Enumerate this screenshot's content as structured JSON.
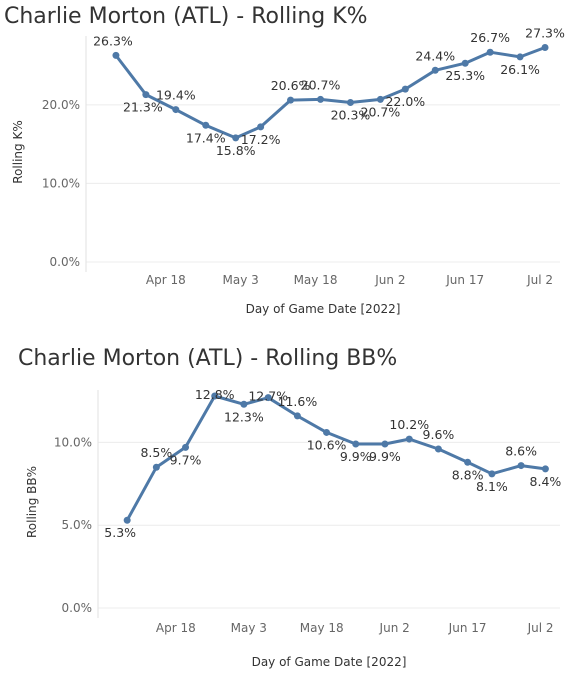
{
  "accent_color": "#4e79a7",
  "chart_data": [
    {
      "type": "line",
      "title": "Charlie Morton (ATL) - Rolling K%",
      "xlabel": "Day of Game Date [2022]",
      "ylabel": "Rolling K%",
      "x_ticks": [
        {
          "date": "2022-04-18",
          "label": "Apr 18"
        },
        {
          "date": "2022-05-03",
          "label": "May 3"
        },
        {
          "date": "2022-05-18",
          "label": "May 18"
        },
        {
          "date": "2022-06-02",
          "label": "Jun 2"
        },
        {
          "date": "2022-06-17",
          "label": "Jun 17"
        },
        {
          "date": "2022-07-02",
          "label": "Jul 2"
        }
      ],
      "y_ticks": [
        {
          "value": 0,
          "label": "0.0%"
        },
        {
          "value": 10,
          "label": "10.0%"
        },
        {
          "value": 20,
          "label": "20.0%"
        }
      ],
      "ylim": [
        0,
        28
      ],
      "xlim": [
        "2022-04-02",
        "2022-07-06"
      ],
      "grid": true,
      "series": [
        {
          "points": [
            {
              "x": "2022-04-08",
              "y": 26.3,
              "label": "26.3%"
            },
            {
              "x": "2022-04-14",
              "y": 21.3,
              "label": "21.3%"
            },
            {
              "x": "2022-04-20",
              "y": 19.4,
              "label": "19.4%"
            },
            {
              "x": "2022-04-26",
              "y": 17.4,
              "label": "17.4%"
            },
            {
              "x": "2022-05-02",
              "y": 15.8,
              "label": "15.8%"
            },
            {
              "x": "2022-05-07",
              "y": 17.2,
              "label": "17.2%"
            },
            {
              "x": "2022-05-13",
              "y": 20.6,
              "label": "20.6%"
            },
            {
              "x": "2022-05-19",
              "y": 20.7,
              "label": "20.7%"
            },
            {
              "x": "2022-05-25",
              "y": 20.3,
              "label": "20.3%"
            },
            {
              "x": "2022-05-31",
              "y": 20.7,
              "label": "20.7%"
            },
            {
              "x": "2022-06-05",
              "y": 22.0,
              "label": "22.0%"
            },
            {
              "x": "2022-06-11",
              "y": 24.4,
              "label": "24.4%"
            },
            {
              "x": "2022-06-17",
              "y": 25.3,
              "label": "25.3%"
            },
            {
              "x": "2022-06-22",
              "y": 26.7,
              "label": "26.7%"
            },
            {
              "x": "2022-06-28",
              "y": 26.1,
              "label": "26.1%"
            },
            {
              "x": "2022-07-03",
              "y": 27.3,
              "label": "27.3%"
            }
          ]
        }
      ]
    },
    {
      "type": "line",
      "title": "Charlie Morton (ATL) - Rolling BB%",
      "xlabel": "Day of Game Date [2022]",
      "ylabel": "Rolling BB%",
      "x_ticks": [
        {
          "date": "2022-04-18",
          "label": "Apr 18"
        },
        {
          "date": "2022-05-03",
          "label": "May 3"
        },
        {
          "date": "2022-05-18",
          "label": "May 18"
        },
        {
          "date": "2022-06-02",
          "label": "Jun 2"
        },
        {
          "date": "2022-06-17",
          "label": "Jun 17"
        },
        {
          "date": "2022-07-02",
          "label": "Jul 2"
        }
      ],
      "y_ticks": [
        {
          "value": 0,
          "label": "0.0%"
        },
        {
          "value": 5,
          "label": "5.0%"
        },
        {
          "value": 10,
          "label": "10.0%"
        }
      ],
      "ylim": [
        0,
        12.8
      ],
      "xlim": [
        "2022-04-02",
        "2022-07-06"
      ],
      "grid": true,
      "series": [
        {
          "points": [
            {
              "x": "2022-04-08",
              "y": 5.3,
              "label": "5.3%"
            },
            {
              "x": "2022-04-14",
              "y": 8.5,
              "label": "8.5%"
            },
            {
              "x": "2022-04-20",
              "y": 9.7,
              "label": "9.7%"
            },
            {
              "x": "2022-04-26",
              "y": 12.8,
              "label": "12.8%"
            },
            {
              "x": "2022-05-02",
              "y": 12.3,
              "label": "12.3%"
            },
            {
              "x": "2022-05-07",
              "y": 12.7,
              "label": "12.7%"
            },
            {
              "x": "2022-05-13",
              "y": 11.6,
              "label": "11.6%"
            },
            {
              "x": "2022-05-19",
              "y": 10.6,
              "label": "10.6%"
            },
            {
              "x": "2022-05-25",
              "y": 9.9,
              "label": "9.9%"
            },
            {
              "x": "2022-05-31",
              "y": 9.9,
              "label": "9.9%"
            },
            {
              "x": "2022-06-05",
              "y": 10.2,
              "label": "10.2%"
            },
            {
              "x": "2022-06-11",
              "y": 9.6,
              "label": "9.6%"
            },
            {
              "x": "2022-06-17",
              "y": 8.8,
              "label": "8.8%"
            },
            {
              "x": "2022-06-22",
              "y": 8.1,
              "label": "8.1%"
            },
            {
              "x": "2022-06-28",
              "y": 8.6,
              "label": "8.6%"
            },
            {
              "x": "2022-07-03",
              "y": 8.4,
              "label": "8.4%"
            }
          ]
        }
      ]
    }
  ]
}
